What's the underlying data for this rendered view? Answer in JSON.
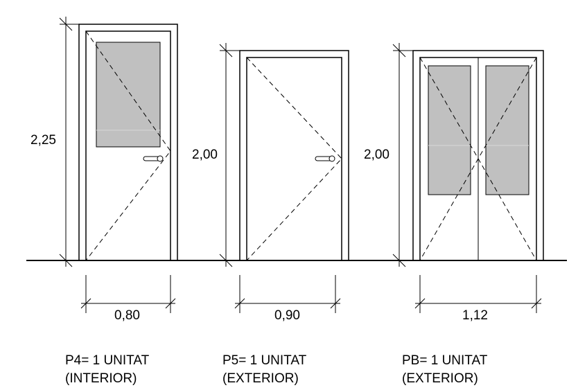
{
  "doors": [
    {
      "height_label": "2,25",
      "width_label": "0,80",
      "caption_line1": "P4= 1 UNITAT",
      "caption_line2": "(INTERIOR)"
    },
    {
      "height_label": "2,00",
      "width_label": "0,90",
      "caption_line1": "P5= 1 UNITAT",
      "caption_line2": "(EXTERIOR)"
    },
    {
      "height_label": "2,00",
      "width_label": "1,12",
      "caption_line1": "PB= 1 UNITAT",
      "caption_line2": "(EXTERIOR)"
    }
  ],
  "colors": {
    "line": "#000000",
    "glass": "#c0c0c0",
    "background": "#ffffff"
  }
}
